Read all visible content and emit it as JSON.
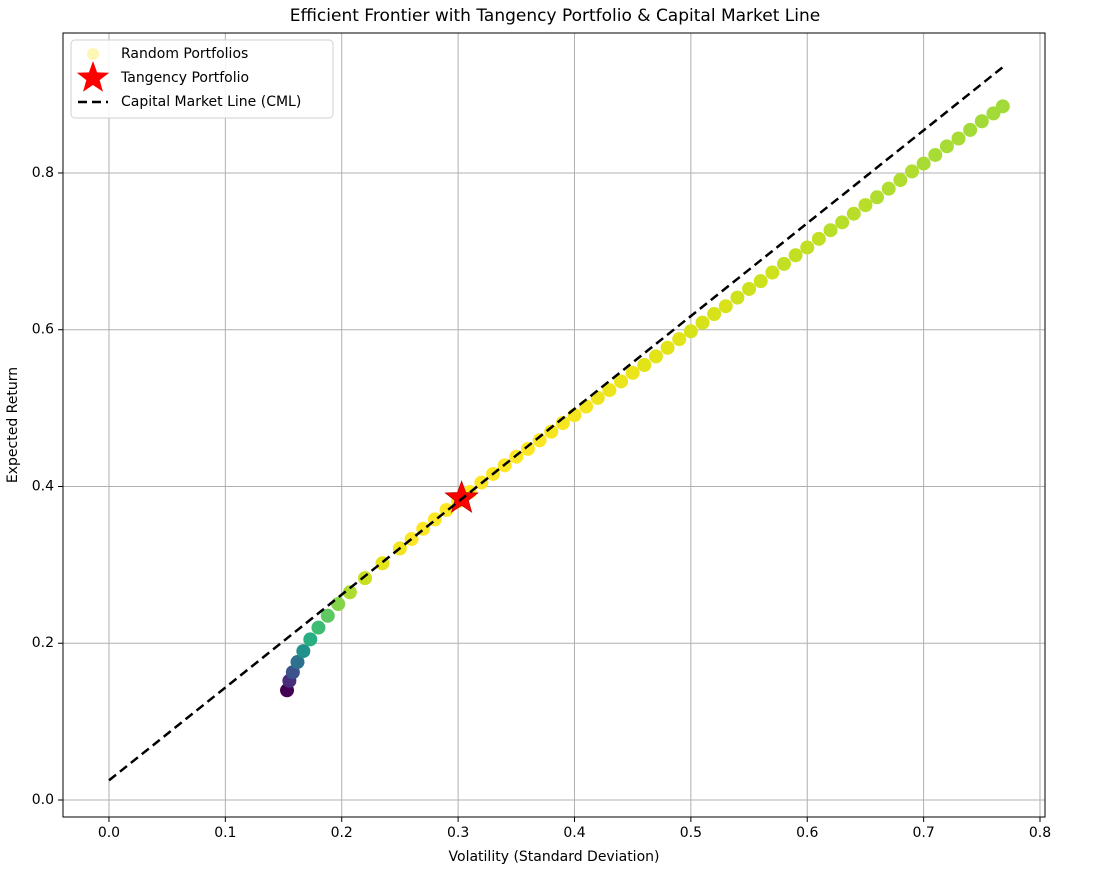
{
  "chart_data": {
    "type": "scatter",
    "title": "Efficient Frontier with Tangency Portfolio & Capital Market Line",
    "xlabel": "Volatility (Standard Deviation)",
    "ylabel": "Expected Return",
    "xlim": [
      -0.0395,
      0.8043
    ],
    "ylim": [
      -0.0217,
      0.9786
    ],
    "xticks": [
      {
        "value": 0,
        "label": "0.0"
      },
      0.1,
      0.2,
      0.3,
      0.4,
      0.5,
      0.6,
      0.7,
      0.8
    ],
    "yticks": [
      {
        "value": 0,
        "label": "0.0"
      },
      0.2,
      0.4,
      0.6,
      0.8
    ],
    "grid": true,
    "legend": "upper left",
    "series": [
      {
        "name": "Random Portfolios",
        "type": "scatter",
        "color": "#fde725",
        "x": [
          0.153,
          0.155,
          0.158,
          0.162,
          0.167,
          0.173,
          0.18,
          0.188,
          0.197,
          0.207,
          0.22,
          0.235,
          0.25,
          0.26,
          0.27,
          0.28,
          0.29,
          0.3,
          0.31,
          0.32,
          0.33,
          0.34,
          0.35,
          0.36,
          0.37,
          0.38,
          0.39,
          0.4,
          0.41,
          0.42,
          0.43,
          0.44,
          0.45,
          0.46,
          0.47,
          0.48,
          0.49,
          0.5,
          0.51,
          0.52,
          0.53,
          0.54,
          0.55,
          0.56,
          0.57,
          0.58,
          0.59,
          0.6,
          0.61,
          0.62,
          0.63,
          0.64,
          0.65,
          0.66,
          0.67,
          0.68,
          0.69,
          0.7,
          0.71,
          0.72,
          0.73,
          0.74,
          0.75,
          0.76,
          0.768
        ],
        "values": [
          0.14,
          0.152,
          0.163,
          0.176,
          0.19,
          0.205,
          0.22,
          0.235,
          0.25,
          0.265,
          0.283,
          0.302,
          0.321,
          0.333,
          0.346,
          0.358,
          0.37,
          0.381,
          0.393,
          0.405,
          0.416,
          0.427,
          0.438,
          0.448,
          0.459,
          0.47,
          0.481,
          0.491,
          0.502,
          0.513,
          0.523,
          0.534,
          0.545,
          0.555,
          0.566,
          0.577,
          0.588,
          0.598,
          0.609,
          0.62,
          0.63,
          0.641,
          0.652,
          0.662,
          0.673,
          0.684,
          0.695,
          0.705,
          0.716,
          0.727,
          0.737,
          0.748,
          0.759,
          0.769,
          0.78,
          0.791,
          0.802,
          0.812,
          0.823,
          0.834,
          0.844,
          0.855,
          0.866,
          0.876,
          0.885
        ],
        "colors": [
          "#440154",
          "#472d7b",
          "#3b528b",
          "#2c728e",
          "#21918c",
          "#28ae80",
          "#3fbc73",
          "#5ec962",
          "#84d44b",
          "#addc30",
          "#c8e020",
          "#e5e419",
          "#f1e51d",
          "#fde725",
          "#fde725",
          "#fde725",
          "#fde725",
          "#fde725",
          "#fde725",
          "#fde725",
          "#fde725",
          "#fde725",
          "#fde725",
          "#fde725",
          "#fde725",
          "#f6e620",
          "#f6e620",
          "#f6e620",
          "#f6e620",
          "#ece51b",
          "#ece51b",
          "#ece51b",
          "#ece51b",
          "#e2e418",
          "#e2e418",
          "#e2e418",
          "#e2e418",
          "#d8e219",
          "#d8e219",
          "#d8e219",
          "#d8e219",
          "#cde11d",
          "#cde11d",
          "#cde11d",
          "#cde11d",
          "#c2df23",
          "#c2df23",
          "#c2df23",
          "#c2df23",
          "#b8de29",
          "#b8de29",
          "#b8de29",
          "#b8de29",
          "#b0dd2f",
          "#b0dd2f",
          "#b0dd2f",
          "#b0dd2f",
          "#a8db34",
          "#a8db34",
          "#a8db34",
          "#a8db34",
          "#a2da37",
          "#a2da37",
          "#a2da37",
          "#a2da37"
        ]
      },
      {
        "name": "Tangency Portfolio",
        "type": "star",
        "color": "#ff0000",
        "x": [
          0.303
        ],
        "values": [
          0.385
        ]
      },
      {
        "name": "Capital Market Line (CML)",
        "type": "line",
        "color": "#000000",
        "dash": true,
        "x": [
          0,
          0.768
        ],
        "values": [
          0.025,
          0.935
        ]
      }
    ]
  }
}
